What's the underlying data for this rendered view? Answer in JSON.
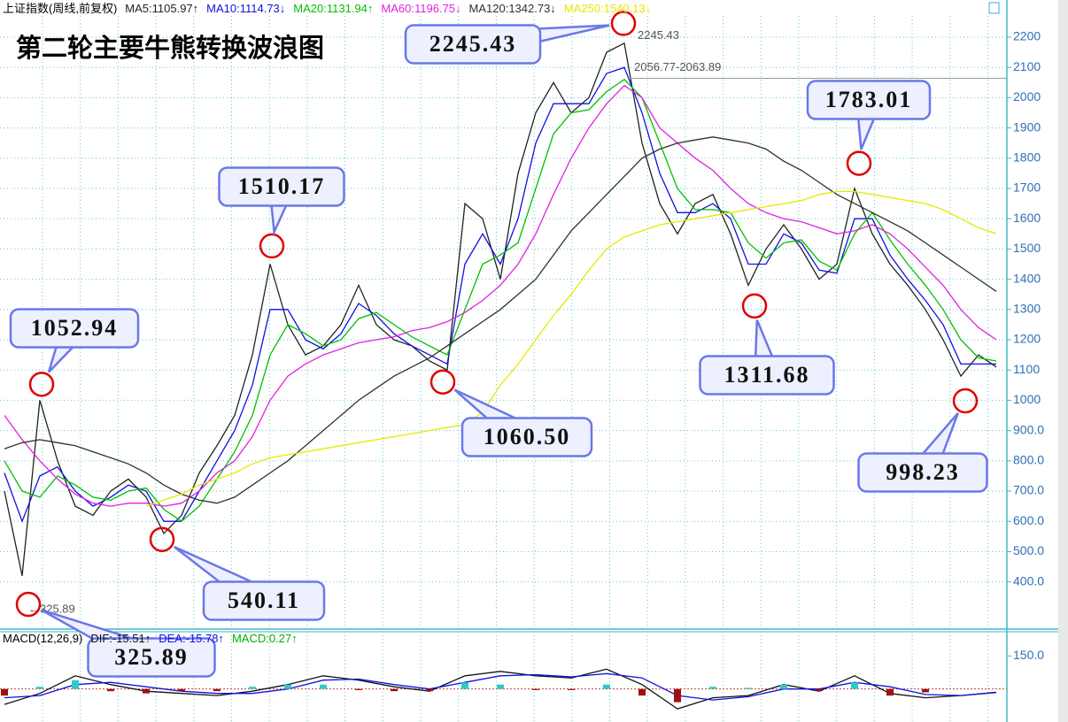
{
  "chart_data": [
    {
      "type": "line",
      "instrument": "上证指数(周线,前复权)",
      "title": "第二轮主要牛熊转换波浪图",
      "series": [
        {
          "name": "MA5:1105.97↑",
          "color": "#222222",
          "values": [
            700,
            420,
            1000,
            800,
            650,
            620,
            700,
            740,
            680,
            560,
            620,
            760,
            850,
            950,
            1150,
            1450,
            1250,
            1150,
            1180,
            1250,
            1380,
            1250,
            1200,
            1180,
            1130,
            1100,
            1650,
            1600,
            1400,
            1750,
            1950,
            2050,
            1950,
            2000,
            2150,
            2180,
            1850,
            1650,
            1550,
            1650,
            1680,
            1550,
            1380,
            1500,
            1580,
            1500,
            1400,
            1450,
            1700,
            1550,
            1450,
            1380,
            1300,
            1200,
            1080,
            1150,
            1110
          ]
        },
        {
          "name": "MA10:1114.73↓",
          "color": "#1010e0",
          "values": [
            760,
            600,
            750,
            780,
            700,
            650,
            680,
            720,
            700,
            600,
            600,
            700,
            800,
            900,
            1050,
            1300,
            1300,
            1200,
            1170,
            1220,
            1320,
            1280,
            1220,
            1180,
            1150,
            1120,
            1450,
            1550,
            1450,
            1600,
            1850,
            1980,
            1980,
            1980,
            2080,
            2100,
            1950,
            1750,
            1620,
            1620,
            1650,
            1600,
            1450,
            1450,
            1550,
            1520,
            1430,
            1420,
            1600,
            1600,
            1480,
            1400,
            1330,
            1250,
            1120,
            1120,
            1120
          ]
        },
        {
          "name": "MA20:1131.94↑",
          "color": "#00c000",
          "values": [
            800,
            700,
            680,
            750,
            720,
            680,
            670,
            700,
            710,
            640,
            600,
            650,
            740,
            830,
            950,
            1150,
            1250,
            1220,
            1180,
            1200,
            1270,
            1290,
            1250,
            1210,
            1180,
            1150,
            1300,
            1450,
            1480,
            1520,
            1700,
            1880,
            1950,
            1960,
            2020,
            2060,
            2000,
            1850,
            1700,
            1630,
            1630,
            1620,
            1520,
            1470,
            1520,
            1530,
            1460,
            1430,
            1550,
            1620,
            1530,
            1450,
            1380,
            1300,
            1200,
            1140,
            1130
          ]
        },
        {
          "name": "MA60:1196.75↓",
          "color": "#e020e0",
          "values": [
            950,
            870,
            800,
            740,
            690,
            660,
            650,
            660,
            660,
            650,
            660,
            700,
            760,
            800,
            880,
            1000,
            1080,
            1120,
            1150,
            1170,
            1190,
            1200,
            1210,
            1230,
            1240,
            1260,
            1290,
            1330,
            1380,
            1450,
            1550,
            1680,
            1800,
            1900,
            1980,
            2040,
            2000,
            1900,
            1850,
            1800,
            1760,
            1700,
            1650,
            1620,
            1600,
            1590,
            1570,
            1550,
            1560,
            1580,
            1550,
            1500,
            1440,
            1380,
            1300,
            1240,
            1200
          ]
        },
        {
          "name": "MA120:1342.73↓",
          "color": "#303030",
          "values": [
            840,
            860,
            870,
            860,
            850,
            830,
            810,
            790,
            760,
            720,
            690,
            670,
            660,
            680,
            720,
            760,
            800,
            850,
            900,
            950,
            1000,
            1040,
            1080,
            1110,
            1140,
            1180,
            1220,
            1260,
            1300,
            1350,
            1400,
            1480,
            1560,
            1620,
            1680,
            1740,
            1800,
            1830,
            1850,
            1860,
            1870,
            1860,
            1850,
            1830,
            1790,
            1760,
            1720,
            1680,
            1650,
            1620,
            1590,
            1560,
            1520,
            1480,
            1440,
            1400,
            1360
          ]
        },
        {
          "name": "MA250:1540.13↓",
          "color": "#e8e800",
          "values": [
            null,
            null,
            null,
            null,
            null,
            null,
            null,
            null,
            650,
            670,
            690,
            720,
            740,
            760,
            790,
            810,
            820,
            830,
            840,
            850,
            860,
            870,
            880,
            890,
            900,
            910,
            920,
            960,
            1050,
            1120,
            1200,
            1280,
            1350,
            1430,
            1500,
            1540,
            1560,
            1580,
            1590,
            1600,
            1610,
            1620,
            1630,
            1640,
            1650,
            1660,
            1680,
            1690,
            1690,
            1680,
            1670,
            1660,
            1650,
            1630,
            1600,
            1570,
            1550
          ]
        }
      ],
      "ylim": [
        285,
        2270
      ],
      "yticks": [
        {
          "value": 400,
          "label": "400.0"
        },
        {
          "value": 500,
          "label": "500.0"
        },
        {
          "value": 600,
          "label": "600.0"
        },
        {
          "value": 700,
          "label": "700.0"
        },
        {
          "value": 800,
          "label": "800.0"
        },
        {
          "value": 900,
          "label": "900.0"
        },
        1000,
        1100,
        1200,
        1300,
        1400,
        1500,
        1600,
        1700,
        1800,
        1900,
        2000,
        2100,
        2200
      ],
      "grid": true,
      "annotations": [
        {
          "value": 2245.43,
          "label": "2245.43"
        },
        {
          "value": 1510.17,
          "label": "1510.17"
        },
        {
          "value": 1052.94,
          "label": "1052.94"
        },
        {
          "value": 1060.5,
          "label": "1060.50"
        },
        {
          "value": 540.11,
          "label": "540.11"
        },
        {
          "value": 325.89,
          "label": "325.89"
        },
        {
          "value": 1311.68,
          "label": "1311.68"
        },
        {
          "value": 1783.01,
          "label": "1783.01"
        },
        {
          "value": 998.23,
          "label": "998.23"
        }
      ],
      "peak_labels": [
        {
          "value": 2245.43,
          "label": "2245.43"
        },
        {
          "value": 325.89,
          "label": "←325.89"
        }
      ],
      "range_line": {
        "value": 2063.89,
        "label": "2056.77-2063.89"
      }
    },
    {
      "type": "macd",
      "title": "MACD(12,26,9)",
      "series": [
        {
          "name": "DIF:-15.51↑",
          "color": "#111111",
          "style": "line",
          "values": [
            -70,
            -20,
            60,
            20,
            -10,
            -20,
            -30,
            -10,
            20,
            60,
            40,
            10,
            -10,
            60,
            80,
            60,
            50,
            90,
            20,
            -90,
            -40,
            -30,
            20,
            -10,
            60,
            -20,
            -40,
            -30,
            -15
          ]
        },
        {
          "name": "DEA:-15.78↑",
          "color": "#1010e0",
          "style": "line",
          "values": [
            -40,
            -30,
            20,
            30,
            10,
            -10,
            -20,
            -20,
            0,
            40,
            45,
            20,
            0,
            30,
            60,
            65,
            55,
            70,
            50,
            -30,
            -50,
            -35,
            0,
            0,
            30,
            10,
            -25,
            -30,
            -16
          ]
        },
        {
          "name": "MACD:0.27↑",
          "color": "#00b000",
          "style": "bar",
          "pos_color": "#30c8c8",
          "neg_color": "#a01010",
          "values": [
            -30,
            10,
            40,
            -10,
            -20,
            -10,
            -10,
            10,
            20,
            20,
            -5,
            -10,
            -10,
            30,
            20,
            -5,
            -5,
            20,
            -30,
            -60,
            10,
            5,
            20,
            -10,
            30,
            -30,
            -15,
            0,
            1
          ]
        }
      ],
      "ylim": [
        -142,
        260
      ],
      "yticks": [
        {
          "value": 150,
          "label": "150.0"
        }
      ]
    }
  ]
}
